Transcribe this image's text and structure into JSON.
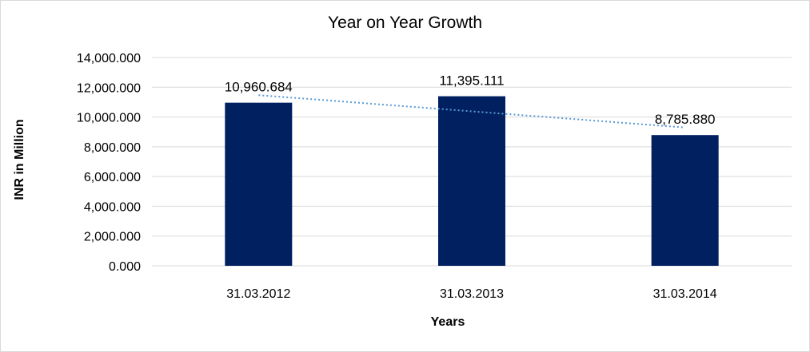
{
  "chart_data": {
    "type": "bar",
    "title": "Year on Year Growth",
    "xlabel": "Years",
    "ylabel": "INR in Million",
    "categories": [
      "31.03.2012",
      "31.03.2013",
      "31.03.2014"
    ],
    "values": [
      10960.684,
      11395.111,
      8785.88
    ],
    "data_labels": [
      "10,960.684",
      "11,395.111",
      "8,785.880"
    ],
    "y_ticks": [
      0,
      2000,
      4000,
      6000,
      8000,
      10000,
      12000,
      14000
    ],
    "y_tick_labels": [
      "0.000",
      "2,000.000",
      "4,000.000",
      "6,000.000",
      "8,000.000",
      "10,000.000",
      "12,000.000",
      "14,000.000"
    ],
    "ylim": [
      0,
      14000
    ],
    "grid": true,
    "legend": "none",
    "trendline": "linear",
    "colors": {
      "bar": "#002060",
      "trendline": "#5b9bd5",
      "grid": "#d9d9d9"
    }
  }
}
